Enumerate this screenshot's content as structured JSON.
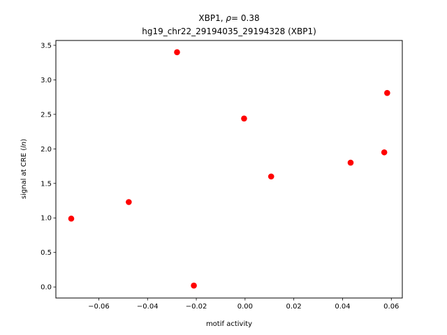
{
  "chart_data": {
    "type": "scatter",
    "title_gene": "XBP1",
    "title_rho_symbol": "ρ",
    "title_rho_value": "= 0.38",
    "subtitle": "hg19_chr22_29194035_29194328 (XBP1)",
    "xlabel": "motif activity",
    "ylabel": "signal at CRE (ln)",
    "xlim": [
      -0.0776,
      0.0645
    ],
    "ylim": [
      -0.16,
      3.57
    ],
    "xticks": [
      -0.06,
      -0.04,
      -0.02,
      0.0,
      0.02,
      0.04,
      0.06
    ],
    "xtick_labels": [
      "−0.06",
      "−0.04",
      "−0.02",
      "0.00",
      "0.02",
      "0.04",
      "0.06"
    ],
    "yticks": [
      0.0,
      0.5,
      1.0,
      1.5,
      2.0,
      2.5,
      3.0,
      3.5
    ],
    "ytick_labels": [
      "0.0",
      "0.5",
      "1.0",
      "1.5",
      "2.0",
      "2.5",
      "3.0",
      "3.5"
    ],
    "grid": false,
    "legend": false,
    "marker_color": "#ff0000",
    "points": [
      {
        "x": -0.0713,
        "y": 0.99
      },
      {
        "x": -0.0477,
        "y": 1.23
      },
      {
        "x": -0.0279,
        "y": 3.4
      },
      {
        "x": -0.021,
        "y": 0.02
      },
      {
        "x": -0.0004,
        "y": 2.44
      },
      {
        "x": 0.0107,
        "y": 1.6
      },
      {
        "x": 0.0433,
        "y": 1.8
      },
      {
        "x": 0.0571,
        "y": 1.95
      },
      {
        "x": 0.0583,
        "y": 2.81
      }
    ]
  }
}
